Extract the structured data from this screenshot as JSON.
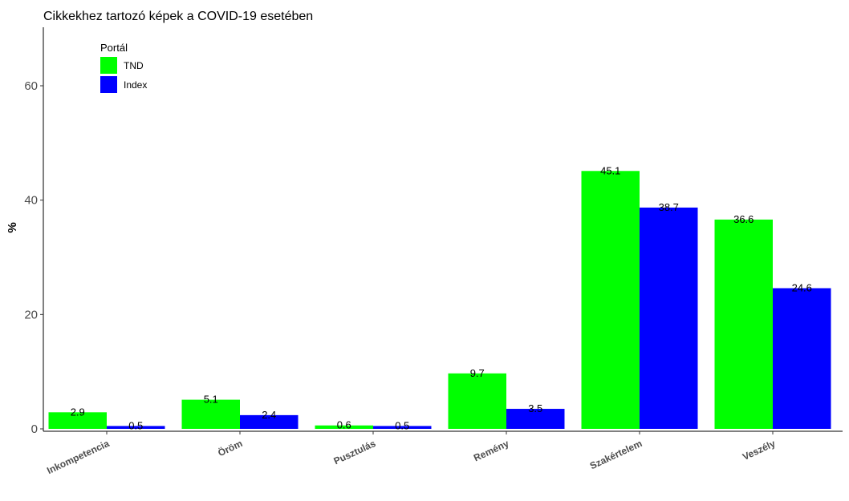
{
  "chart_data": {
    "type": "bar",
    "title": "Cikkekhez tartozó képek a COVID-19 esetében",
    "xlabel": "",
    "ylabel": "%",
    "ylim": [
      0,
      70
    ],
    "yticks": [
      0,
      20,
      40,
      60
    ],
    "grid": false,
    "legend": {
      "title": "Portál",
      "position": "top-left"
    },
    "categories": [
      "Inkompetencia",
      "Öröm",
      "Pusztulás",
      "Remény",
      "Szakértelem",
      "Veszély"
    ],
    "series": [
      {
        "name": "TND",
        "color": "#00ff00",
        "values": [
          2.9,
          5.1,
          0.6,
          9.7,
          45.1,
          36.6
        ]
      },
      {
        "name": "Index",
        "color": "#0000ff",
        "values": [
          0.5,
          2.4,
          0.5,
          3.5,
          38.7,
          24.6
        ]
      }
    ]
  }
}
